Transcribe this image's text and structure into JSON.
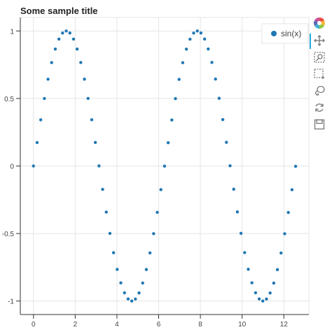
{
  "chart_data": {
    "type": "scatter",
    "title": "Some sample title",
    "xlabel": "",
    "ylabel": "",
    "xlim": [
      -0.63,
      13.2
    ],
    "ylim": [
      -1.1,
      1.1
    ],
    "xticks": [
      0,
      2,
      4,
      6,
      8,
      10,
      12
    ],
    "yticks": [
      -1,
      -0.5,
      0,
      0.5,
      1
    ],
    "xtick_labels": [
      "0",
      "2",
      "4",
      "6",
      "8",
      "10",
      "12"
    ],
    "ytick_labels": [
      "-1",
      "-0.5",
      "0",
      "0.5",
      "1"
    ],
    "grid": true,
    "legend_position": "top-right",
    "series": [
      {
        "name": "sin(x)",
        "color": "#1f77b4",
        "function": "sin(x)",
        "x_start": 0,
        "x_step": 0.1745,
        "count": 73
      }
    ]
  },
  "toolbar": {
    "tools": [
      {
        "name": "bokeh-logo-icon",
        "label": ""
      },
      {
        "name": "pan-icon",
        "label": ""
      },
      {
        "name": "box-zoom-icon",
        "label": ""
      },
      {
        "name": "box-select-icon",
        "label": ""
      },
      {
        "name": "lasso-select-icon",
        "label": ""
      },
      {
        "name": "reset-icon",
        "label": ""
      },
      {
        "name": "save-icon",
        "label": ""
      }
    ]
  }
}
